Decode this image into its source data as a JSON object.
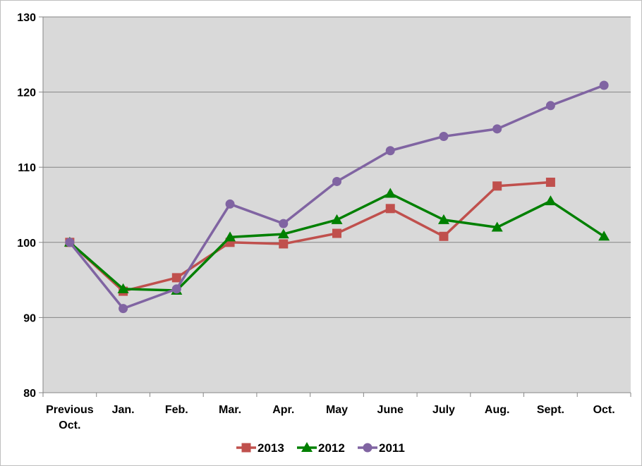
{
  "chart_data": {
    "type": "line",
    "title": "",
    "xlabel": "",
    "ylabel": "",
    "categories": [
      [
        "Previous",
        "Oct."
      ],
      [
        "Jan."
      ],
      [
        "Feb."
      ],
      [
        "Mar."
      ],
      [
        "Apr."
      ],
      [
        "May"
      ],
      [
        "June"
      ],
      [
        "July"
      ],
      [
        "Aug."
      ],
      [
        "Sept."
      ],
      [
        "Oct."
      ]
    ],
    "ylim": [
      80,
      130
    ],
    "yticks": [
      80,
      90,
      100,
      110,
      120,
      130
    ],
    "grid": true,
    "legend_position": "bottom",
    "plot_background": "#d9d9d9",
    "gridline_color": "#868686",
    "series": [
      {
        "name": "2013",
        "color": "#c0504d",
        "marker": "square",
        "values": [
          100,
          93.5,
          95.3,
          100,
          99.8,
          101.2,
          104.5,
          100.8,
          107.5,
          108,
          null
        ]
      },
      {
        "name": "2012",
        "color": "#008000",
        "marker": "triangle",
        "values": [
          100,
          93.8,
          93.6,
          100.7,
          101.1,
          103,
          106.5,
          103,
          102,
          105.5,
          100.8
        ]
      },
      {
        "name": "2011",
        "color": "#8064a2",
        "marker": "circle",
        "values": [
          100,
          91.2,
          93.8,
          105.1,
          102.5,
          108.1,
          112.2,
          114.1,
          115.1,
          118.2,
          120.9
        ]
      }
    ]
  }
}
